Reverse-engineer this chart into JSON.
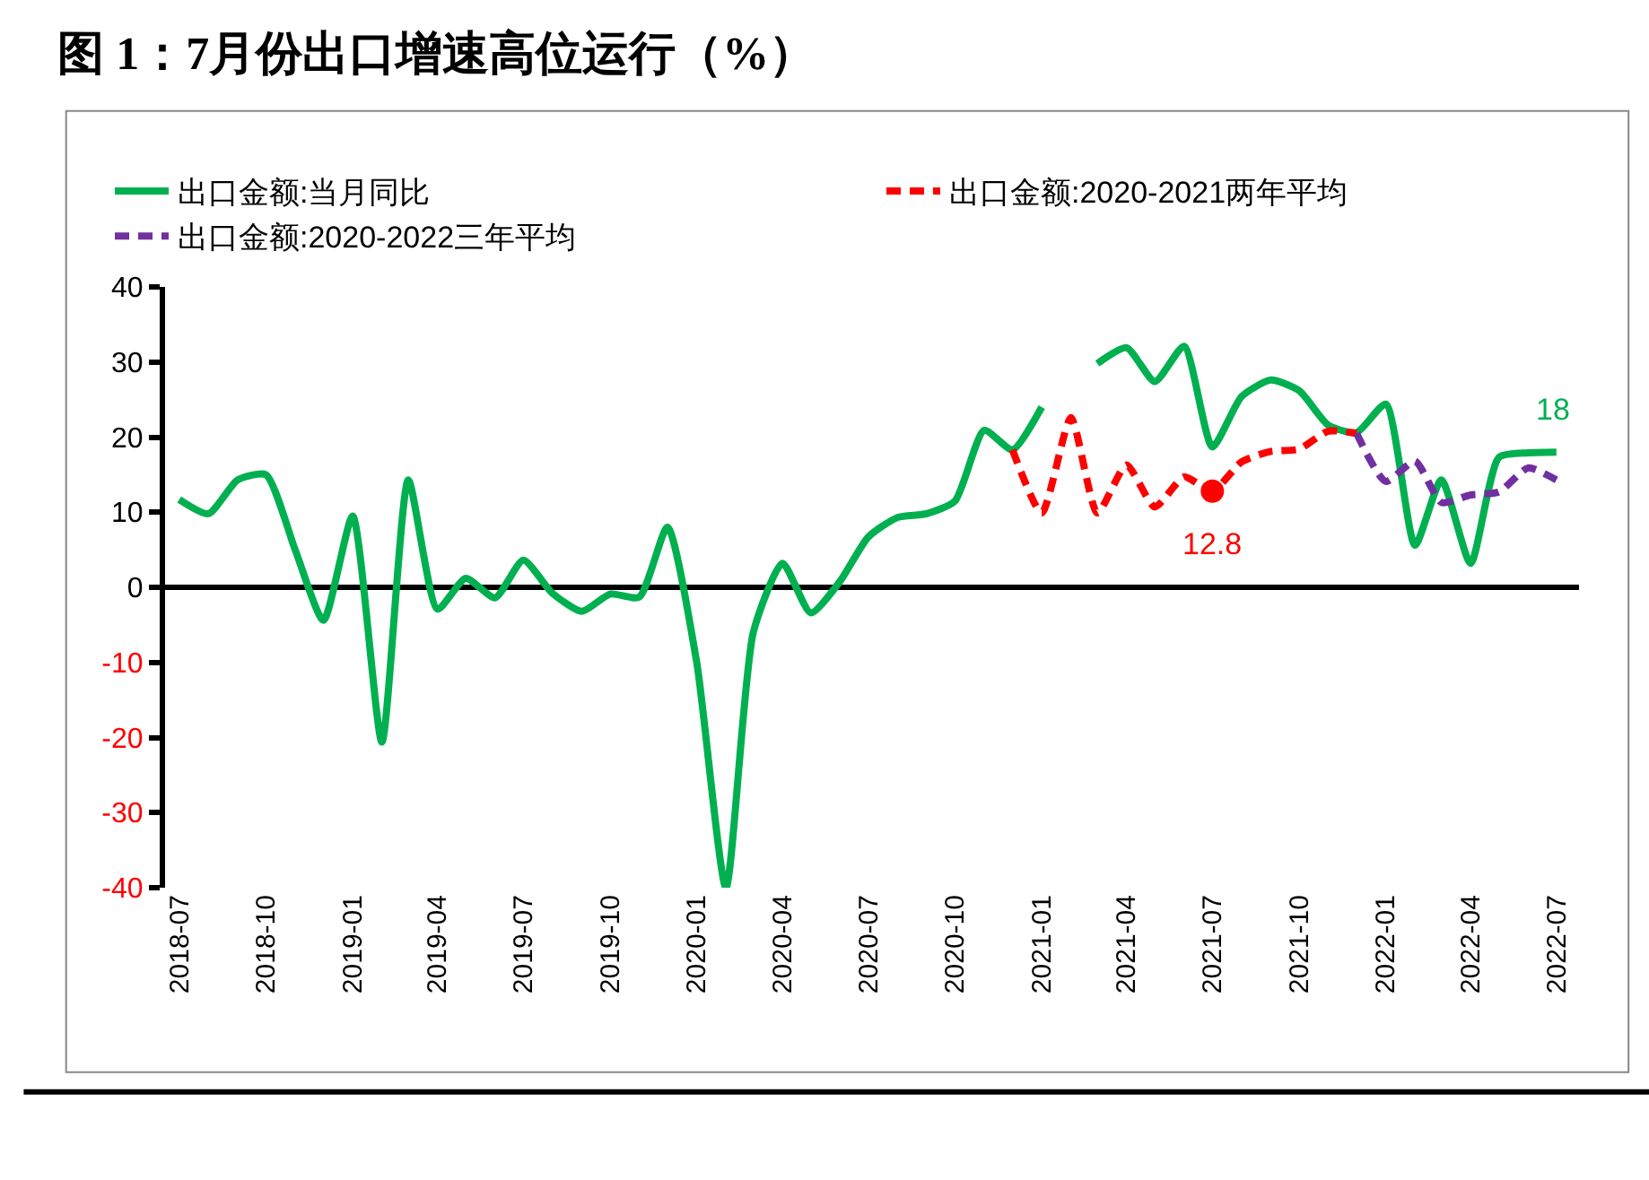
{
  "chart_data": {
    "type": "line",
    "title": "图 1：7月份出口增速高位运行（%）",
    "x": [
      "2018-07",
      "2018-08",
      "2018-09",
      "2018-10",
      "2018-11",
      "2018-12",
      "2019-01",
      "2019-02",
      "2019-03",
      "2019-04",
      "2019-05",
      "2019-06",
      "2019-07",
      "2019-08",
      "2019-09",
      "2019-10",
      "2019-11",
      "2019-12",
      "2020-01",
      "2020-02",
      "2020-03",
      "2020-04",
      "2020-05",
      "2020-06",
      "2020-07",
      "2020-08",
      "2020-09",
      "2020-10",
      "2020-11",
      "2020-12",
      "2021-01",
      "2021-02",
      "2021-03",
      "2021-04",
      "2021-05",
      "2021-06",
      "2021-07",
      "2021-08",
      "2021-09",
      "2021-10",
      "2021-11",
      "2021-12",
      "2022-01",
      "2022-02",
      "2022-03",
      "2022-04",
      "2022-05",
      "2022-06",
      "2022-07"
    ],
    "series": [
      {
        "name": "出口金额:当月同比",
        "color": "#00b050",
        "line_style": "solid",
        "values": [
          11.7,
          9.8,
          14.3,
          15,
          5,
          -4.4,
          9.5,
          -20.6,
          14.3,
          -2.9,
          1.2,
          -1.4,
          3.6,
          -0.8,
          -3.2,
          -0.9,
          -1.3,
          8.0,
          -10,
          -40,
          -6,
          3.2,
          -3.4,
          0.8,
          6.7,
          9.3,
          9.8,
          11.5,
          20.9,
          18.3,
          24,
          null,
          29.8,
          31.9,
          27.4,
          32.1,
          18.7,
          25.4,
          27.6,
          26.2,
          21.6,
          20.6,
          24.4,
          5.6,
          14.3,
          3.2,
          17.3,
          17.9,
          18
        ]
      },
      {
        "name": "出口金额:2020-2021两年平均",
        "color": "#ff0000",
        "line_style": "dashed",
        "x": [
          "2020-12",
          "2021-01",
          "2021-02",
          "2021-03",
          "2021-04",
          "2021-05",
          "2021-06",
          "2021-07",
          "2021-08",
          "2021-09",
          "2021-10",
          "2021-11",
          "2021-12"
        ],
        "values": [
          18.3,
          9.9,
          22.6,
          9.9,
          16.3,
          10.7,
          14.7,
          12.8,
          16.7,
          18.1,
          18.4,
          20.8,
          20.5
        ]
      },
      {
        "name": "出口金额:2020-2022三年平均",
        "color": "#7030a0",
        "line_style": "dashed",
        "x": [
          "2021-12",
          "2022-01",
          "2022-02",
          "2022-03",
          "2022-04",
          "2022-05",
          "2022-06",
          "2022-07"
        ],
        "values": [
          20.5,
          14.1,
          16.8,
          11.3,
          12.3,
          12.7,
          15.9,
          14.3
        ]
      },
      {
        "type": "scatter",
        "marker": "circle",
        "color": "#ff0000",
        "x": [
          "2021-07"
        ],
        "values": [
          12.8
        ]
      }
    ],
    "annotations": [
      {
        "text": "12.8",
        "x": "2021-07",
        "y": 12.8
      },
      {
        "text": "18",
        "x": "2022-07",
        "y": 18
      }
    ],
    "xlim": [
      "2018-06-16",
      "2022-07-25"
    ],
    "xticks": [
      "2018-07",
      "2018-10",
      "2019-01",
      "2019-04",
      "2019-07",
      "2019-10",
      "2020-01",
      "2020-04",
      "2020-07",
      "2020-10",
      "2021-01",
      "2021-04",
      "2021-07",
      "2021-10",
      "2022-01",
      "2022-04",
      "2022-07"
    ],
    "ylim": [
      -40,
      40
    ],
    "yticks": [
      -40,
      -30,
      -20,
      -10,
      0,
      10,
      20,
      30,
      40
    ],
    "ref_lines": [
      {
        "axis": "y",
        "value": 0,
        "color": "#000000"
      }
    ],
    "grid": false,
    "legend": "top"
  }
}
